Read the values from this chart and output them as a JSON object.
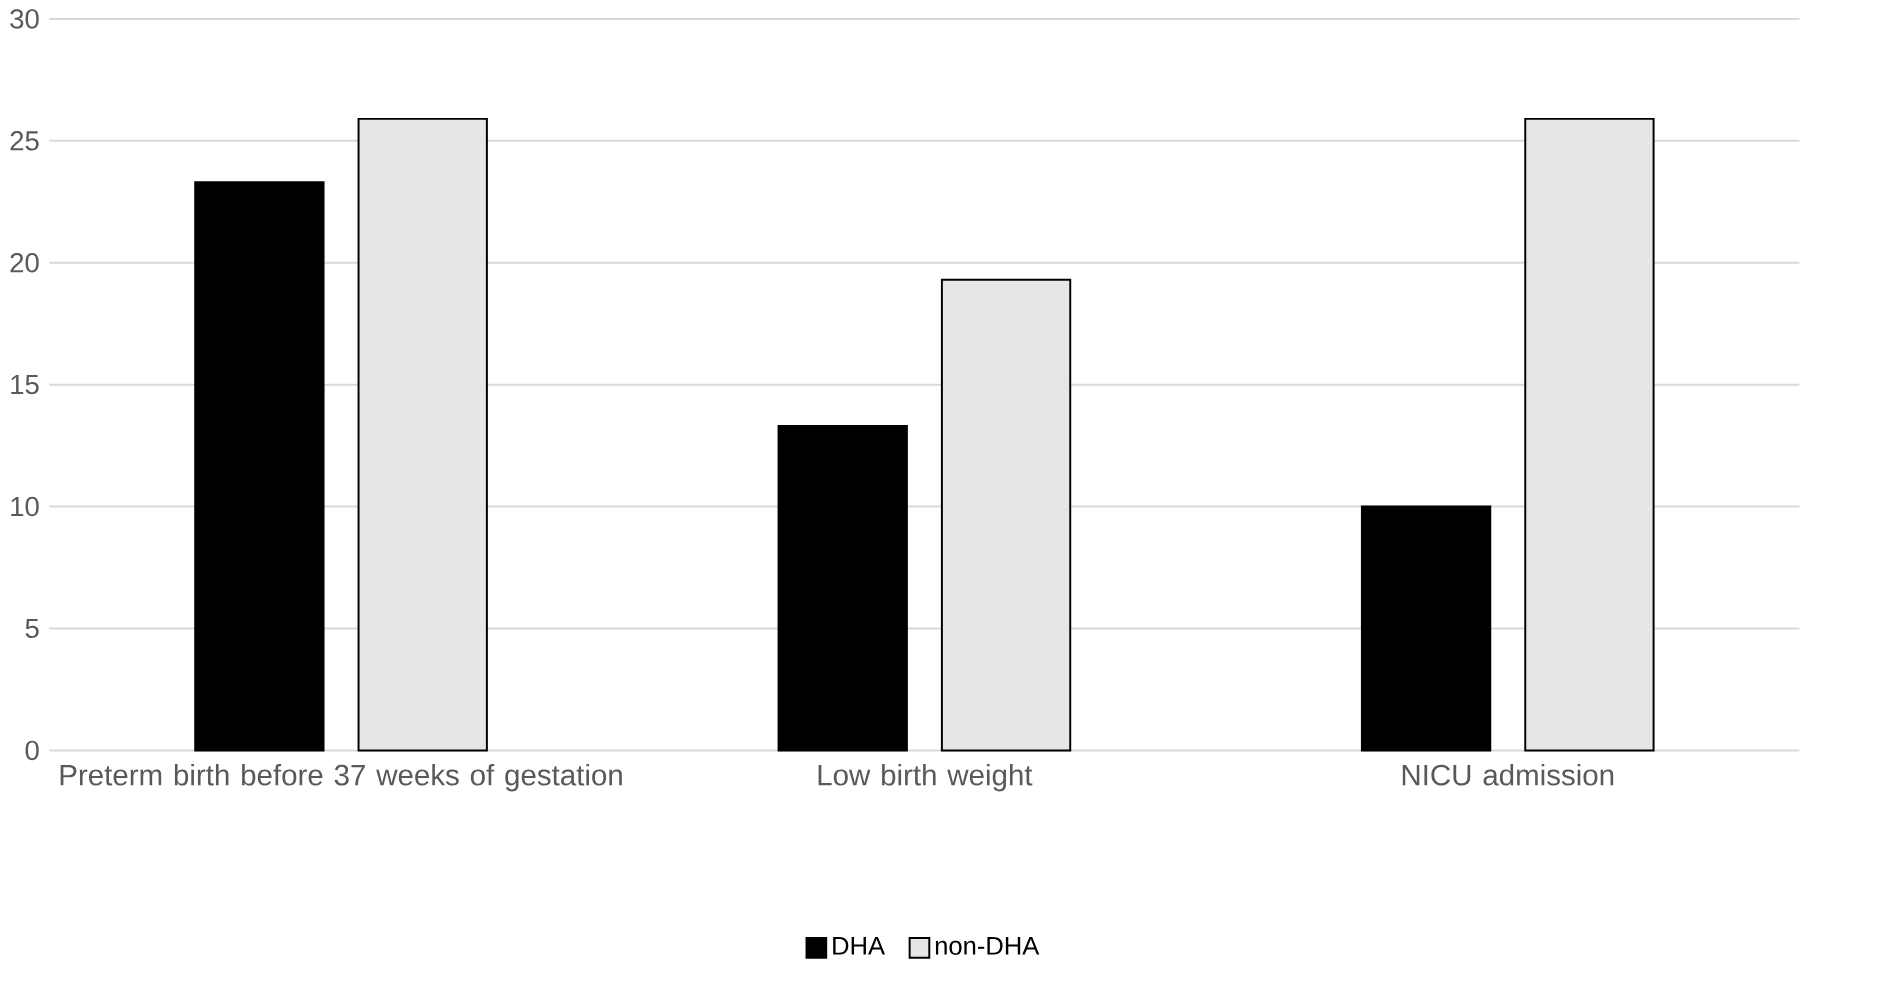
{
  "chart_data": {
    "type": "bar",
    "categories": [
      "Preterm birth before 37 weeks of gestation",
      "Low birth weight",
      "NICU admission"
    ],
    "series": [
      {
        "name": "DHA",
        "color": "#000000",
        "values": [
          23.3,
          13.3,
          10.0
        ]
      },
      {
        "name": "non-DHA",
        "color": "#e6e6e6",
        "values": [
          25.9,
          19.3,
          25.9
        ]
      }
    ],
    "ylim": [
      0,
      30
    ],
    "yticks": [
      0,
      5,
      10,
      15,
      20,
      25,
      30
    ],
    "grid": "y",
    "legend": "bottom"
  }
}
